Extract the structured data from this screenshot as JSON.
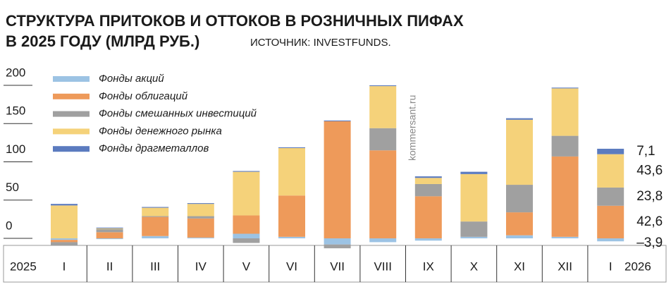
{
  "chart_data": {
    "type": "stacked-bar",
    "title": [
      "СТРУКТУРА ПРИТОКОВ И ОТТОКОВ В РОЗНИЧНЫХ ПИФАХ",
      "В 2025 ГОДУ (МЛРД РУБ.)"
    ],
    "subtitle": "ИСТОЧНИК: INVESTFUNDS.",
    "watermark": "kommersant.ru",
    "year_labels": [
      "2025",
      "2026"
    ],
    "categories": [
      "I",
      "II",
      "III",
      "IV",
      "V",
      "VI",
      "VII",
      "VIII",
      "IX",
      "X",
      "XI",
      "XII",
      "I"
    ],
    "ylim": [
      -10,
      210
    ],
    "yticks": [
      0,
      50,
      100,
      150,
      200
    ],
    "series": [
      {
        "name": "Фонды акций",
        "color": "#9cc3e4",
        "values": [
          -2,
          -1,
          3,
          1,
          6,
          2,
          -8,
          -5,
          -3,
          2,
          4,
          2,
          -3.9
        ],
        "value_labels": [
          null,
          null,
          null,
          null,
          null,
          null,
          null,
          null,
          null,
          null,
          null,
          null,
          "–3,9"
        ]
      },
      {
        "name": "Фонды облигаций",
        "color": "#ee9a5a",
        "values": [
          -3,
          8,
          25,
          25,
          24,
          54,
          153,
          115,
          55,
          0,
          30,
          105,
          42.6
        ],
        "value_labels": [
          null,
          null,
          null,
          null,
          null,
          null,
          null,
          null,
          null,
          null,
          null,
          null,
          "42,6"
        ]
      },
      {
        "name": "Фонды смешанных инвестиций",
        "color": "#a0a0a0",
        "values": [
          -4,
          4,
          1,
          3,
          -6,
          0,
          -5,
          29,
          16,
          20,
          36,
          27,
          23.8
        ],
        "value_labels": [
          null,
          null,
          null,
          null,
          null,
          null,
          null,
          null,
          null,
          null,
          null,
          null,
          "23,8"
        ]
      },
      {
        "name": "Фонды денежного рынка",
        "color": "#f5d27a",
        "values": [
          43,
          1,
          11,
          16,
          57,
          62,
          0,
          55,
          8,
          62,
          85,
          62,
          43.6
        ],
        "value_labels": [
          null,
          null,
          null,
          null,
          null,
          null,
          null,
          null,
          null,
          null,
          null,
          null,
          "43,6"
        ]
      },
      {
        "name": "Фонды драгметаллов",
        "color": "#5b7bbf",
        "values": [
          2,
          1,
          1,
          1,
          1,
          1,
          1,
          1,
          2,
          3,
          2,
          1,
          7.1
        ],
        "value_labels": [
          null,
          null,
          null,
          null,
          null,
          null,
          null,
          null,
          null,
          null,
          null,
          null,
          "7,1"
        ]
      }
    ]
  }
}
